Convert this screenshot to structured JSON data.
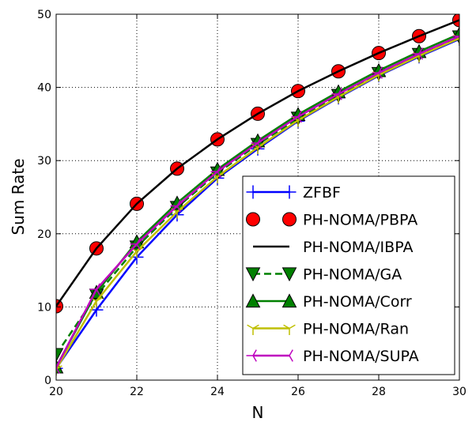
{
  "chart_data": {
    "type": "line",
    "xlabel": "N",
    "ylabel": "Sum Rate",
    "xlim": [
      20,
      30
    ],
    "ylim": [
      0,
      50
    ],
    "x_ticks": [
      "20",
      "22",
      "24",
      "26",
      "28",
      "30"
    ],
    "y_ticks": [
      "0",
      "10",
      "20",
      "30",
      "40",
      "50"
    ],
    "grid": true,
    "legend_position": "lower-right",
    "x": [
      20,
      21,
      22,
      23,
      24,
      25,
      26,
      27,
      28,
      29,
      30
    ],
    "series": [
      {
        "name": "ZFBF",
        "color": "#0000ff",
        "line": "solid",
        "marker": "plus",
        "values": [
          1.6,
          9.6,
          16.8,
          22.6,
          27.6,
          31.6,
          35.4,
          38.6,
          41.6,
          44.2,
          46.6
        ]
      },
      {
        "name": "PH-NOMA/PBPA",
        "color": "#ff0000",
        "line": "none",
        "marker": "circle",
        "values": [
          10.1,
          18.0,
          24.1,
          28.9,
          32.9,
          36.4,
          39.5,
          42.2,
          44.7,
          47.0,
          49.2
        ]
      },
      {
        "name": "PH-NOMA/IBPA",
        "color": "#000000",
        "line": "solid",
        "marker": "none",
        "values": [
          10.1,
          18.0,
          24.1,
          28.9,
          32.9,
          36.4,
          39.5,
          42.2,
          44.7,
          47.0,
          49.2
        ]
      },
      {
        "name": "PH-NOMA/GA",
        "color": "#008000",
        "line": "dashed",
        "marker": "triangle-down",
        "values": [
          3.5,
          11.6,
          18.2,
          23.6,
          28.3,
          32.2,
          35.8,
          38.9,
          41.9,
          44.5,
          46.9
        ]
      },
      {
        "name": "PH-NOMA/Corr",
        "color": "#008000",
        "line": "solid",
        "marker": "triangle-up",
        "values": [
          1.8,
          12.0,
          18.9,
          24.2,
          28.8,
          32.7,
          36.3,
          39.4,
          42.3,
          44.9,
          47.3
        ]
      },
      {
        "name": "PH-NOMA/Ran",
        "color": "#bfbf00",
        "line": "solid",
        "marker": "tri-down",
        "values": [
          1.5,
          10.8,
          17.6,
          23.0,
          27.8,
          31.8,
          35.5,
          38.7,
          41.7,
          44.3,
          46.7
        ]
      },
      {
        "name": "PH-NOMA/SUPA",
        "color": "#bf00bf",
        "line": "solid",
        "marker": "tri-left",
        "values": [
          1.7,
          12.4,
          18.6,
          23.8,
          28.5,
          32.4,
          36.0,
          39.1,
          42.0,
          44.6,
          47.0
        ]
      }
    ]
  }
}
